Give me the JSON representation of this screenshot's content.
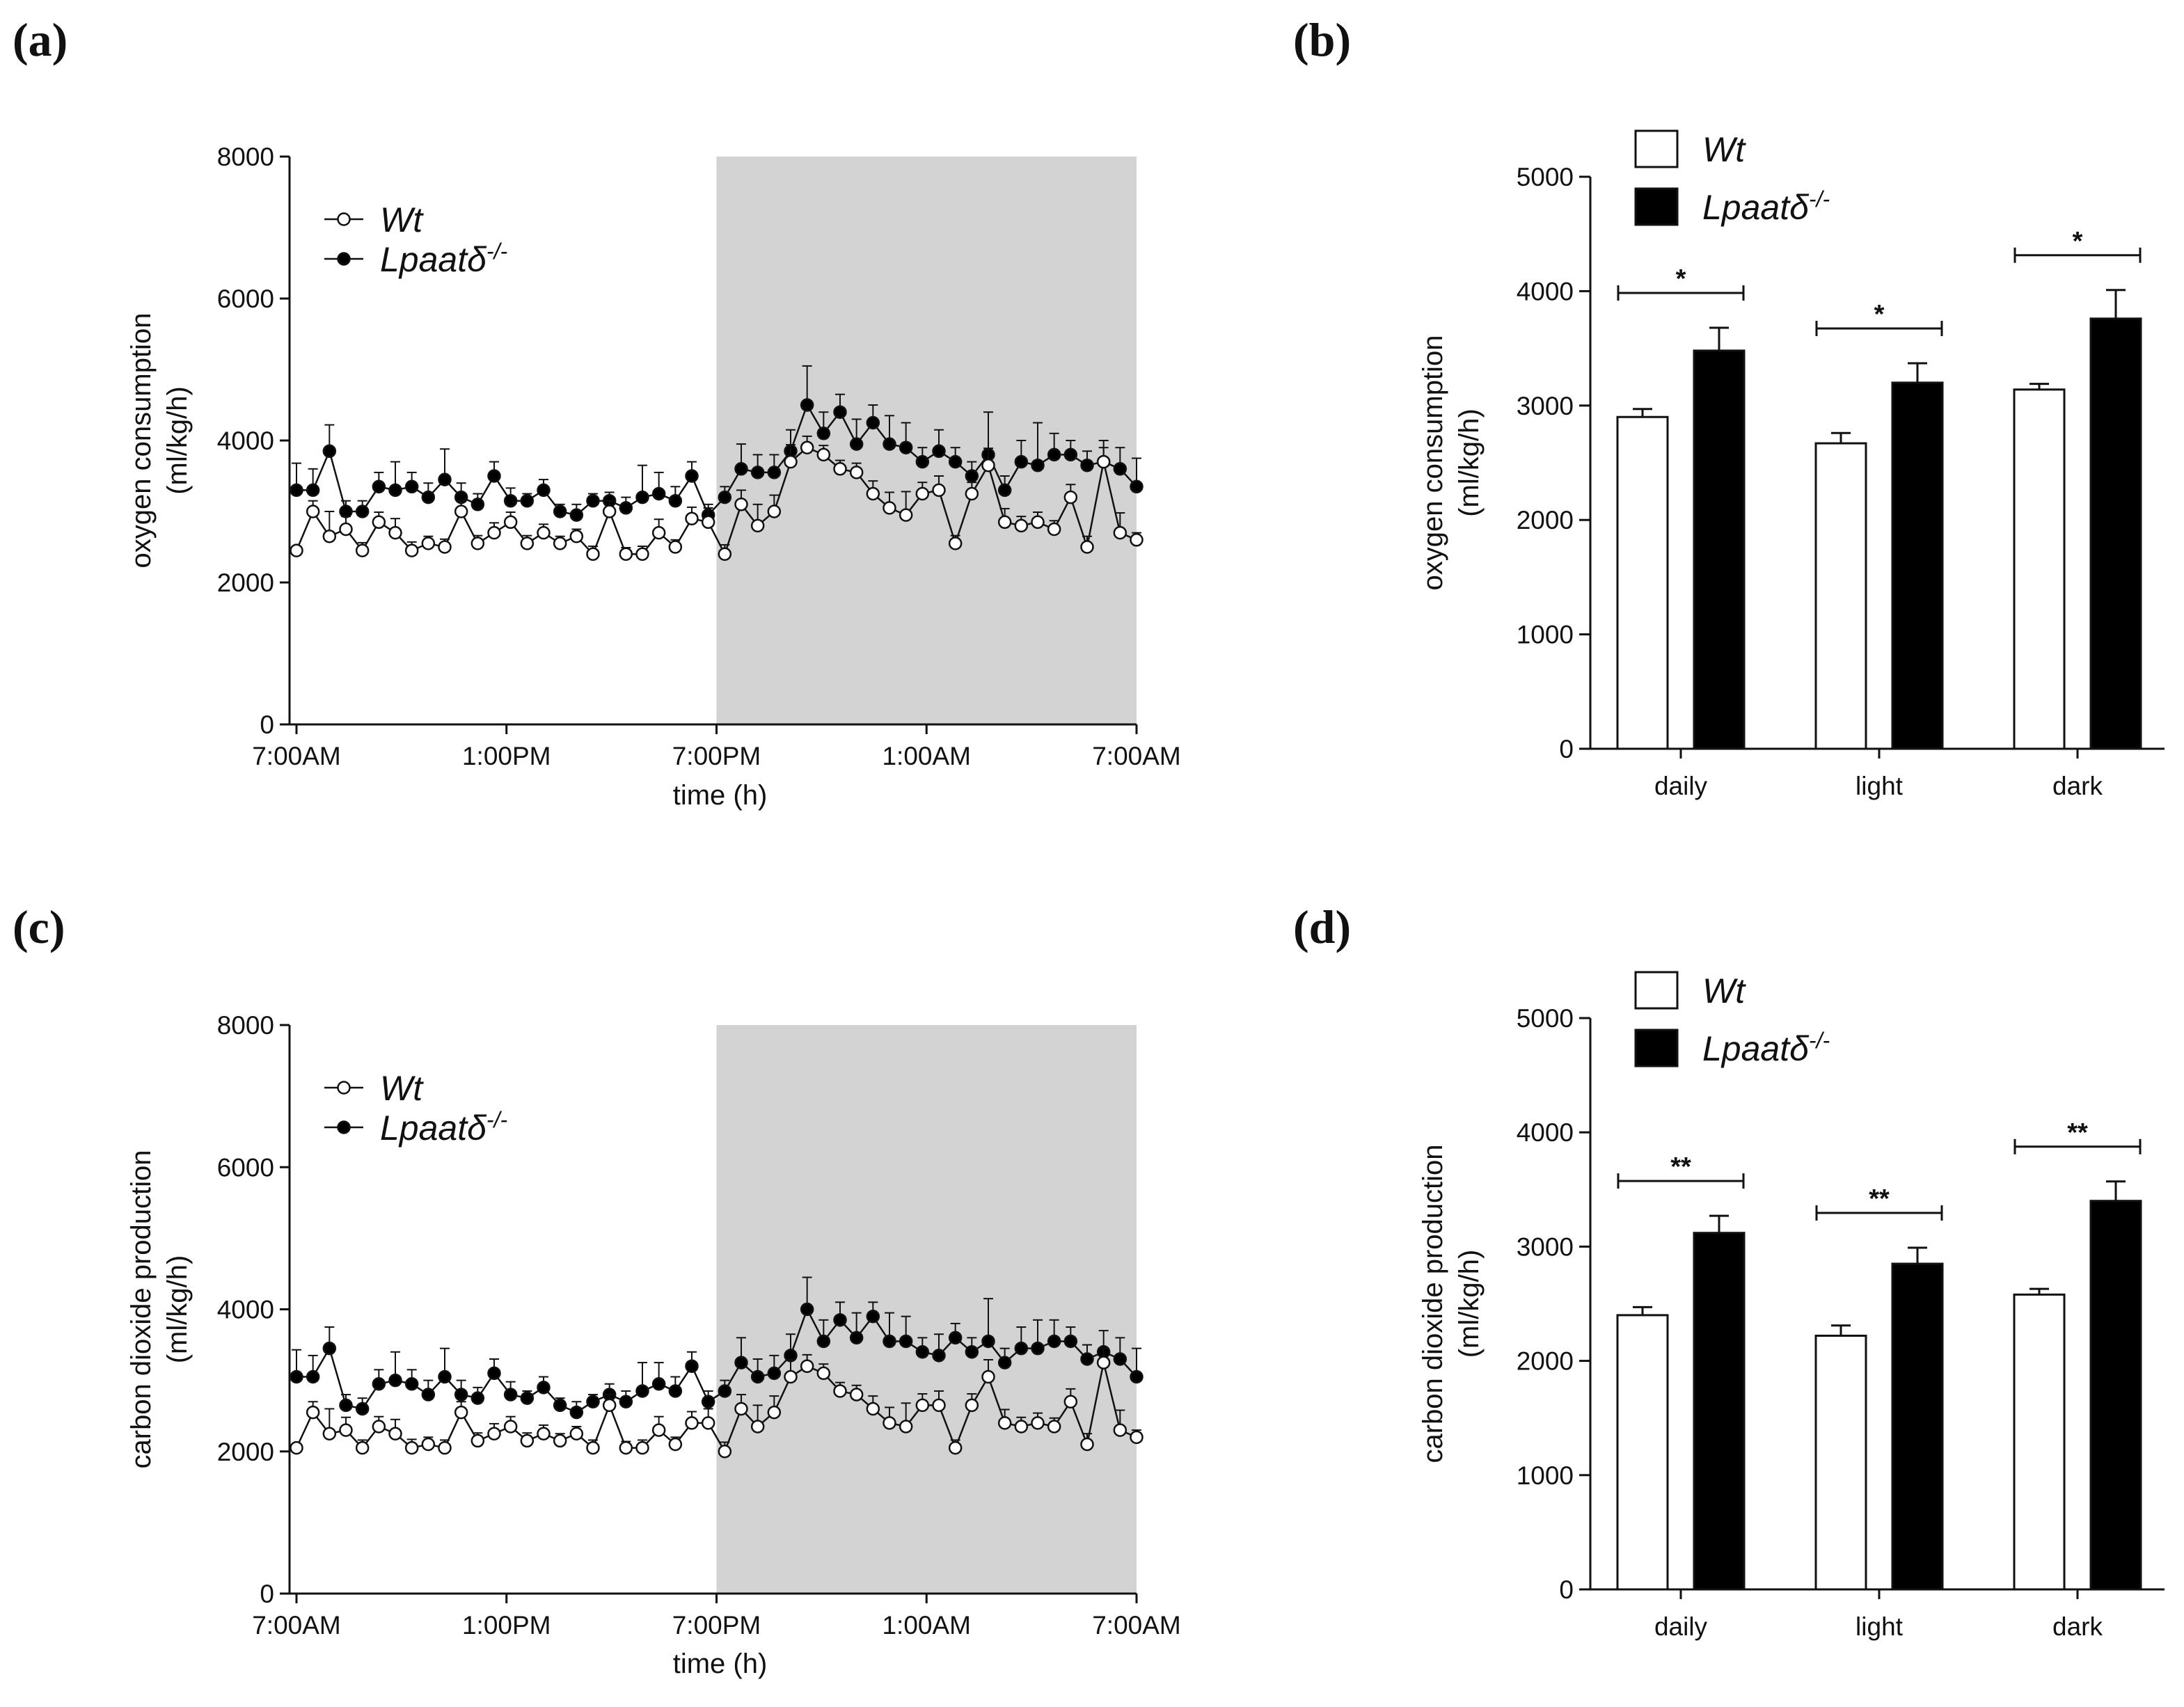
{
  "panels": [
    {
      "panel_label": "(a)",
      "chart_data": {
        "type": "line",
        "title": "",
        "xlabel": "time (h)",
        "ylabel_lines": [
          "oxygen consumption",
          "(ml/kg/h)"
        ],
        "ylim": [
          0,
          8000
        ],
        "yticks": [
          0,
          2000,
          4000,
          6000,
          8000
        ],
        "xrange_hours": [
          0,
          24
        ],
        "xtick_labels": [
          "7:00AM",
          "1:00PM",
          "7:00PM",
          "1:00AM",
          "7:00AM"
        ],
        "xtick_hours": [
          0,
          6,
          12,
          18,
          24
        ],
        "dark_phase_hours": [
          12,
          24
        ],
        "legend_position": "top-left",
        "series": [
          {
            "name": "Wt",
            "marker": "open-circle",
            "values": [
              2450,
              3000,
              2650,
              2750,
              2450,
              2850,
              2700,
              2450,
              2550,
              2500,
              3000,
              2550,
              2700,
              2850,
              2550,
              2700,
              2550,
              2650,
              2400,
              3000,
              2400,
              2400,
              2700,
              2500,
              2900,
              2850,
              2400,
              3100,
              2800,
              3000,
              3700,
              3900,
              3800,
              3600,
              3550,
              3250,
              3050,
              2950,
              3250,
              3300,
              2550,
              3250,
              3650,
              2850,
              2800,
              2850,
              2750,
              3200,
              2500,
              3700,
              2700,
              2600
            ],
            "err": [
              60,
              150,
              350,
              180,
              110,
              140,
              200,
              120,
              100,
              110,
              150,
              110,
              140,
              140,
              110,
              120,
              100,
              100,
              110,
              150,
              90,
              110,
              190,
              100,
              160,
              200,
              130,
              200,
              300,
              230,
              240,
              160,
              130,
              120,
              130,
              180,
              220,
              330,
              160,
              200,
              110,
              160,
              240,
              190,
              130,
              140,
              120,
              180,
              150,
              200,
              280,
              100
            ]
          },
          {
            "name": "Lpaatδ-/-",
            "marker": "filled-circle",
            "values": [
              3300,
              3300,
              3850,
              3000,
              3000,
              3350,
              3300,
              3350,
              3200,
              3450,
              3200,
              3100,
              3500,
              3150,
              3150,
              3300,
              3000,
              2950,
              3150,
              3150,
              3050,
              3200,
              3250,
              3150,
              3500,
              2950,
              3200,
              3600,
              3550,
              3550,
              3850,
              4500,
              4100,
              4400,
              3950,
              4250,
              3950,
              3900,
              3700,
              3850,
              3700,
              3500,
              3800,
              3300,
              3700,
              3650,
              3800,
              3800,
              3650,
              3700,
              3600,
              3350
            ],
            "err": [
              380,
              300,
              370,
              150,
              150,
              200,
              400,
              200,
              200,
              430,
              200,
              150,
              200,
              180,
              100,
              150,
              100,
              150,
              100,
              120,
              150,
              450,
              300,
              200,
              200,
              150,
              150,
              350,
              250,
              250,
              300,
              550,
              300,
              250,
              350,
              250,
              400,
              350,
              200,
              300,
              200,
              200,
              600,
              200,
              300,
              600,
              300,
              200,
              200,
              300,
              300,
              400
            ]
          }
        ]
      }
    },
    {
      "panel_label": "(b)",
      "chart_data": {
        "type": "bar",
        "title": "",
        "xlabel": "",
        "ylabel_lines": [
          "oxygen consumption",
          "(ml/kg/h)"
        ],
        "ylim": [
          0,
          5000
        ],
        "yticks": [
          0,
          1000,
          2000,
          3000,
          4000,
          5000
        ],
        "categories": [
          "daily",
          "light",
          "dark"
        ],
        "legend_position": "top-left",
        "series": [
          {
            "name": "Wt",
            "fill": "#ffffff",
            "values": [
              2900,
              2670,
              3140
            ],
            "err": [
              70,
              90,
              50
            ]
          },
          {
            "name": "Lpaatδ-/-",
            "fill": "#000000",
            "values": [
              3480,
              3200,
              3760
            ],
            "err": [
              200,
              170,
              250
            ]
          }
        ],
        "significance": [
          "*",
          "*",
          "*"
        ]
      }
    },
    {
      "panel_label": "(c)",
      "chart_data": {
        "type": "line",
        "title": "",
        "xlabel": "time (h)",
        "ylabel_lines": [
          "carbon dioxide production",
          "(ml/kg/h)"
        ],
        "ylim": [
          0,
          8000
        ],
        "yticks": [
          0,
          2000,
          4000,
          6000,
          8000
        ],
        "xrange_hours": [
          0,
          24
        ],
        "xtick_labels": [
          "7:00AM",
          "1:00PM",
          "7:00PM",
          "1:00AM",
          "7:00AM"
        ],
        "xtick_hours": [
          0,
          6,
          12,
          18,
          24
        ],
        "dark_phase_hours": [
          12,
          24
        ],
        "legend_position": "top-left",
        "series": [
          {
            "name": "Wt",
            "marker": "open-circle",
            "values": [
              2050,
              2550,
              2250,
              2300,
              2050,
              2350,
              2250,
              2050,
              2100,
              2050,
              2550,
              2150,
              2250,
              2350,
              2150,
              2250,
              2150,
              2250,
              2050,
              2650,
              2050,
              2050,
              2300,
              2100,
              2400,
              2400,
              2000,
              2600,
              2350,
              2550,
              3050,
              3200,
              3100,
              2850,
              2800,
              2600,
              2400,
              2350,
              2650,
              2650,
              2050,
              2650,
              3050,
              2400,
              2350,
              2400,
              2350,
              2700,
              2100,
              3250,
              2300,
              2200
            ],
            "err": [
              60,
              150,
              350,
              180,
              110,
              140,
              200,
              120,
              100,
              110,
              150,
              110,
              140,
              140,
              110,
              120,
              100,
              100,
              110,
              150,
              90,
              110,
              190,
              100,
              160,
              200,
              130,
              200,
              300,
              230,
              240,
              160,
              130,
              120,
              130,
              180,
              220,
              330,
              160,
              200,
              110,
              160,
              240,
              190,
              130,
              140,
              120,
              180,
              150,
              200,
              280,
              100
            ]
          },
          {
            "name": "Lpaatδ-/-",
            "marker": "filled-circle",
            "values": [
              3050,
              3050,
              3450,
              2650,
              2600,
              2950,
              3000,
              2950,
              2800,
              3050,
              2800,
              2750,
              3100,
              2800,
              2750,
              2900,
              2650,
              2550,
              2700,
              2800,
              2700,
              2850,
              2950,
              2850,
              3200,
              2700,
              2850,
              3250,
              3050,
              3100,
              3350,
              4000,
              3550,
              3850,
              3600,
              3900,
              3550,
              3550,
              3400,
              3350,
              3600,
              3400,
              3550,
              3250,
              3450,
              3450,
              3550,
              3550,
              3300,
              3400,
              3300,
              3050
            ],
            "err": [
              380,
              300,
              300,
              150,
              150,
              200,
              400,
              200,
              200,
              400,
              200,
              150,
              200,
              180,
              100,
              150,
              100,
              150,
              100,
              150,
              150,
              400,
              300,
              200,
              200,
              150,
              150,
              350,
              250,
              250,
              300,
              450,
              300,
              250,
              350,
              200,
              400,
              350,
              200,
              300,
              200,
              200,
              600,
              200,
              300,
              400,
              300,
              200,
              200,
              300,
              300,
              400
            ]
          }
        ]
      }
    },
    {
      "panel_label": "(d)",
      "chart_data": {
        "type": "bar",
        "title": "",
        "xlabel": "",
        "ylabel_lines": [
          "carbon dioxide production",
          "(ml/kg/h)"
        ],
        "ylim": [
          0,
          5000
        ],
        "yticks": [
          0,
          1000,
          2000,
          3000,
          4000,
          5000
        ],
        "categories": [
          "daily",
          "light",
          "dark"
        ],
        "legend_position": "top-left",
        "series": [
          {
            "name": "Wt",
            "fill": "#ffffff",
            "values": [
              2400,
              2220,
              2580
            ],
            "err": [
              70,
              90,
              50
            ]
          },
          {
            "name": "Lpaatδ-/-",
            "fill": "#000000",
            "values": [
              3120,
              2850,
              3400
            ],
            "err": [
              150,
              140,
              170
            ]
          }
        ],
        "significance": [
          "**",
          "**",
          "**"
        ]
      }
    }
  ]
}
